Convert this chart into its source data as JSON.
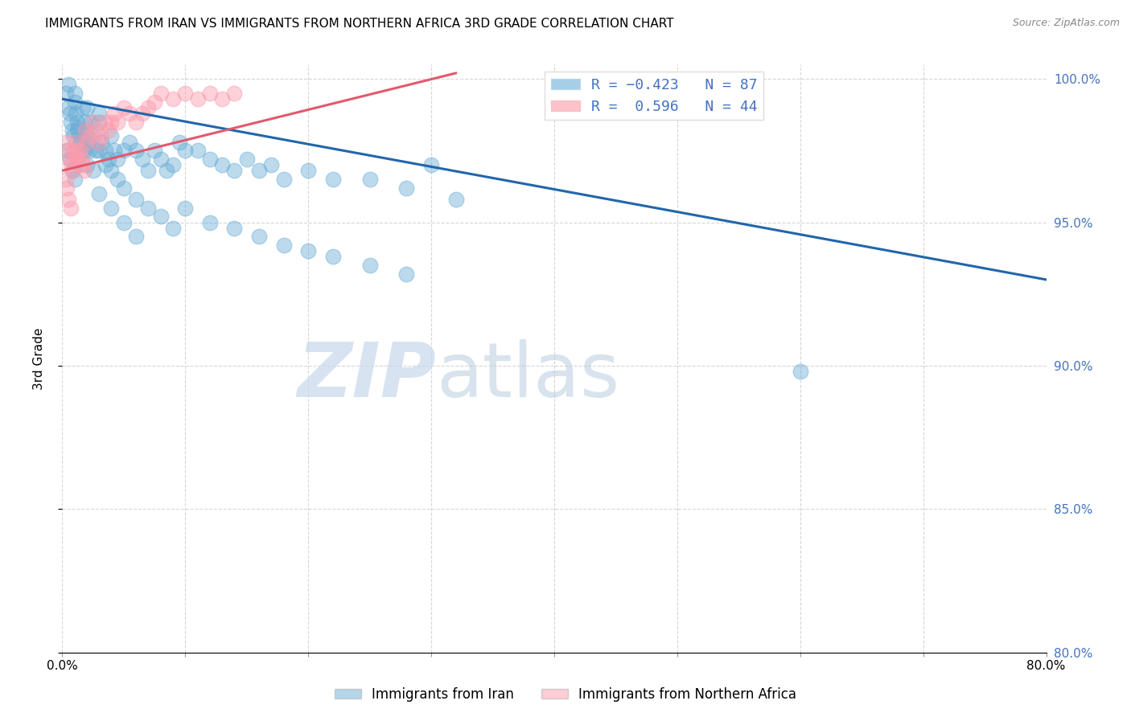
{
  "title": "IMMIGRANTS FROM IRAN VS IMMIGRANTS FROM NORTHERN AFRICA 3RD GRADE CORRELATION CHART",
  "source": "Source: ZipAtlas.com",
  "ylabel": "3rd Grade",
  "xlim": [
    0.0,
    0.8
  ],
  "ylim": [
    0.8,
    1.005
  ],
  "xticks": [
    0.0,
    0.1,
    0.2,
    0.3,
    0.4,
    0.5,
    0.6,
    0.7,
    0.8
  ],
  "xticklabels": [
    "0.0%",
    "",
    "",
    "",
    "",
    "",
    "",
    "",
    "80.0%"
  ],
  "yticks": [
    0.8,
    0.85,
    0.9,
    0.95,
    1.0
  ],
  "yticklabels": [
    "80.0%",
    "85.0%",
    "90.0%",
    "95.0%",
    "100.0%"
  ],
  "iran_color": "#6baed6",
  "nafrica_color": "#fc9bad",
  "iran_line_color": "#2166ac",
  "nafrica_line_color": "#e05a6e",
  "watermark_zip": "ZIP",
  "watermark_atlas": "atlas",
  "background_color": "#ffffff",
  "grid_color": "#cccccc",
  "iran_scatter_x": [
    0.003,
    0.005,
    0.006,
    0.007,
    0.008,
    0.009,
    0.01,
    0.011,
    0.012,
    0.013,
    0.014,
    0.015,
    0.016,
    0.017,
    0.018,
    0.019,
    0.02,
    0.021,
    0.022,
    0.023,
    0.025,
    0.027,
    0.03,
    0.032,
    0.035,
    0.038,
    0.04,
    0.042,
    0.045,
    0.05,
    0.055,
    0.06,
    0.065,
    0.07,
    0.075,
    0.08,
    0.085,
    0.09,
    0.095,
    0.1,
    0.11,
    0.12,
    0.13,
    0.14,
    0.15,
    0.16,
    0.17,
    0.18,
    0.2,
    0.22,
    0.25,
    0.28,
    0.3,
    0.32,
    0.004,
    0.006,
    0.008,
    0.01,
    0.012,
    0.015,
    0.018,
    0.02,
    0.025,
    0.03,
    0.035,
    0.04,
    0.045,
    0.05,
    0.06,
    0.07,
    0.08,
    0.09,
    0.1,
    0.12,
    0.14,
    0.16,
    0.18,
    0.2,
    0.22,
    0.25,
    0.28,
    0.03,
    0.04,
    0.05,
    0.06,
    0.6,
    0.005,
    0.01,
    0.02,
    0.03
  ],
  "iran_scatter_y": [
    0.995,
    0.99,
    0.988,
    0.985,
    0.982,
    0.98,
    0.992,
    0.988,
    0.985,
    0.983,
    0.98,
    0.978,
    0.975,
    0.99,
    0.985,
    0.982,
    0.98,
    0.978,
    0.975,
    0.985,
    0.98,
    0.975,
    0.985,
    0.978,
    0.975,
    0.972,
    0.98,
    0.975,
    0.972,
    0.975,
    0.978,
    0.975,
    0.972,
    0.968,
    0.975,
    0.972,
    0.968,
    0.97,
    0.978,
    0.975,
    0.975,
    0.972,
    0.97,
    0.968,
    0.972,
    0.968,
    0.97,
    0.965,
    0.968,
    0.965,
    0.965,
    0.962,
    0.97,
    0.958,
    0.975,
    0.972,
    0.968,
    0.965,
    0.982,
    0.978,
    0.975,
    0.97,
    0.968,
    0.975,
    0.97,
    0.968,
    0.965,
    0.962,
    0.958,
    0.955,
    0.952,
    0.948,
    0.955,
    0.95,
    0.948,
    0.945,
    0.942,
    0.94,
    0.938,
    0.935,
    0.932,
    0.96,
    0.955,
    0.95,
    0.945,
    0.898,
    0.998,
    0.995,
    0.99,
    0.988
  ],
  "nafrica_scatter_x": [
    0.003,
    0.005,
    0.006,
    0.007,
    0.008,
    0.009,
    0.01,
    0.011,
    0.012,
    0.013,
    0.014,
    0.015,
    0.016,
    0.017,
    0.018,
    0.019,
    0.02,
    0.022,
    0.025,
    0.028,
    0.03,
    0.032,
    0.035,
    0.038,
    0.04,
    0.042,
    0.045,
    0.05,
    0.055,
    0.06,
    0.065,
    0.07,
    0.075,
    0.08,
    0.09,
    0.1,
    0.11,
    0.12,
    0.13,
    0.14,
    0.003,
    0.004,
    0.005,
    0.007
  ],
  "nafrica_scatter_y": [
    0.978,
    0.975,
    0.972,
    0.97,
    0.968,
    0.975,
    0.972,
    0.978,
    0.975,
    0.972,
    0.97,
    0.975,
    0.972,
    0.97,
    0.968,
    0.982,
    0.978,
    0.98,
    0.985,
    0.982,
    0.978,
    0.98,
    0.985,
    0.982,
    0.985,
    0.988,
    0.985,
    0.99,
    0.988,
    0.985,
    0.988,
    0.99,
    0.992,
    0.995,
    0.993,
    0.995,
    0.993,
    0.995,
    0.993,
    0.995,
    0.965,
    0.962,
    0.958,
    0.955
  ],
  "iran_line_x0": 0.0,
  "iran_line_x1": 0.8,
  "iran_line_y0": 0.993,
  "iran_line_y1": 0.93,
  "nafrica_line_x0": 0.0,
  "nafrica_line_x1": 0.32,
  "nafrica_line_y0": 0.968,
  "nafrica_line_y1": 1.002
}
